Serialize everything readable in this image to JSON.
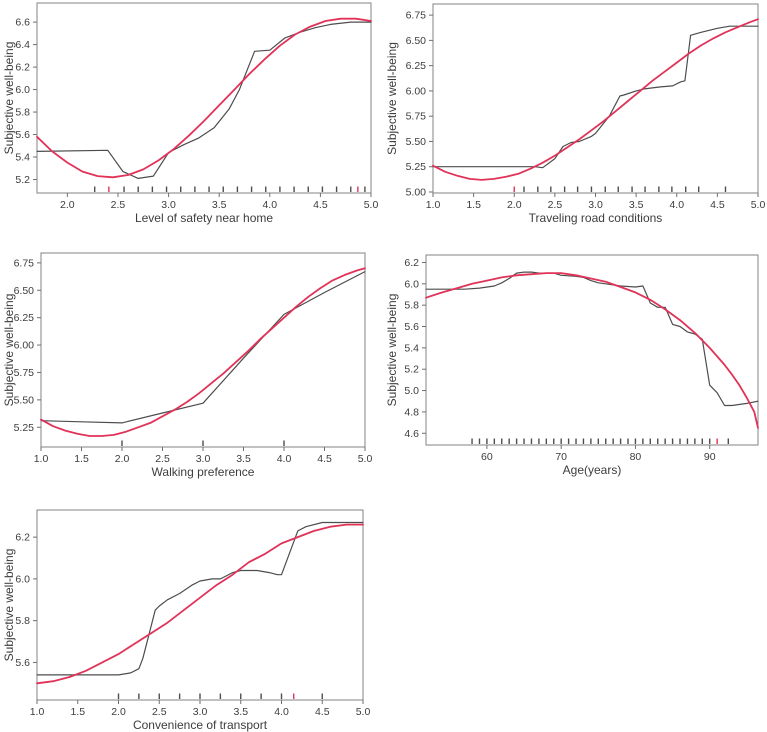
{
  "figure": {
    "background": "#ffffff"
  },
  "colors": {
    "observed": "#4d4d4d",
    "fitted": "#e13258",
    "frame": "#838383",
    "tick": "#6e6e6e",
    "text": "#3d3d3d"
  },
  "shared_ylabel": "Subjective well-being",
  "chart_data": [
    {
      "type": "line",
      "title": "",
      "xlabel": "Level of safety near home",
      "ylabel": "Subjective well-being",
      "xlim": [
        1.7,
        5.0
      ],
      "ylim": [
        5.08,
        6.77
      ],
      "grid": false,
      "legend": "none",
      "xticks": {
        "values": [
          2.0,
          2.5,
          3.0,
          3.5,
          4.0,
          4.5,
          5.0
        ],
        "labels": [
          "2.0",
          "2.5",
          "3.0",
          "3.5",
          "4.0",
          "4.5",
          "5.0"
        ]
      },
      "yticks": {
        "values": [
          5.2,
          5.4,
          5.6,
          5.8,
          6.0,
          6.2,
          6.4,
          6.6
        ],
        "labels": [
          "5.2",
          "5.4",
          "5.6",
          "5.8",
          "6.0",
          "6.2",
          "6.4",
          "6.6"
        ]
      },
      "series": [
        {
          "name": "observed",
          "color_key": "observed",
          "width": 1.2,
          "x": [
            1.7,
            2.4,
            2.55,
            2.7,
            2.85,
            3.0,
            3.15,
            3.3,
            3.45,
            3.6,
            3.7,
            3.85,
            4.0,
            4.15,
            4.3,
            4.45,
            4.6,
            4.8,
            5.0
          ],
          "y": [
            5.45,
            5.46,
            5.27,
            5.21,
            5.23,
            5.44,
            5.51,
            5.57,
            5.66,
            5.83,
            6.0,
            6.34,
            6.35,
            6.46,
            6.51,
            6.55,
            6.58,
            6.6,
            6.6
          ]
        },
        {
          "name": "fitted",
          "color_key": "fitted",
          "width": 1.8,
          "x": [
            1.7,
            1.85,
            2.0,
            2.15,
            2.3,
            2.45,
            2.6,
            2.75,
            2.9,
            3.05,
            3.2,
            3.35,
            3.5,
            3.65,
            3.8,
            3.95,
            4.1,
            4.25,
            4.4,
            4.55,
            4.7,
            4.85,
            5.0
          ],
          "y": [
            5.58,
            5.45,
            5.35,
            5.27,
            5.23,
            5.22,
            5.24,
            5.29,
            5.37,
            5.47,
            5.59,
            5.72,
            5.86,
            6.0,
            6.14,
            6.27,
            6.39,
            6.49,
            6.56,
            6.61,
            6.63,
            6.63,
            6.61
          ]
        }
      ],
      "rug": {
        "x": [
          2.27,
          2.56,
          2.7,
          2.84,
          2.98,
          3.12,
          3.26,
          3.4,
          3.54,
          3.68,
          3.82,
          3.96,
          4.1,
          4.24,
          4.38,
          4.52,
          4.66,
          4.8,
          4.94
        ],
        "red_x": [
          2.41,
          4.87
        ]
      }
    },
    {
      "type": "line",
      "title": "",
      "xlabel": "Traveling road conditions",
      "ylabel": "Subjective well-being",
      "xlim": [
        1.0,
        5.0
      ],
      "ylim": [
        4.99,
        6.86
      ],
      "grid": false,
      "legend": "none",
      "xticks": {
        "values": [
          1.0,
          1.5,
          2.0,
          2.5,
          3.0,
          3.5,
          4.0,
          4.5,
          5.0
        ],
        "labels": [
          "1.0",
          "1.5",
          "2.0",
          "2.5",
          "3.0",
          "3.5",
          "4.0",
          "4.5",
          "5.0"
        ]
      },
      "yticks": {
        "values": [
          5.0,
          5.25,
          5.5,
          5.75,
          6.0,
          6.25,
          6.5,
          6.75
        ],
        "labels": [
          "5.00",
          "5.25",
          "5.50",
          "5.75",
          "6.00",
          "6.25",
          "6.50",
          "6.75"
        ]
      },
      "series": [
        {
          "name": "observed",
          "color_key": "observed",
          "width": 1.2,
          "x": [
            1.0,
            2.25,
            2.35,
            2.5,
            2.6,
            2.7,
            2.8,
            2.95,
            3.0,
            3.1,
            3.17,
            3.3,
            3.35,
            3.5,
            3.6,
            3.8,
            3.95,
            4.05,
            4.1,
            4.17,
            4.3,
            4.5,
            4.65,
            5.0
          ],
          "y": [
            5.25,
            5.25,
            5.24,
            5.33,
            5.45,
            5.49,
            5.5,
            5.55,
            5.58,
            5.68,
            5.75,
            5.95,
            5.96,
            6.0,
            6.02,
            6.04,
            6.05,
            6.09,
            6.1,
            6.55,
            6.58,
            6.62,
            6.64,
            6.64
          ]
        },
        {
          "name": "fitted",
          "color_key": "fitted",
          "width": 1.8,
          "x": [
            1.0,
            1.15,
            1.3,
            1.45,
            1.6,
            1.75,
            1.9,
            2.05,
            2.2,
            2.35,
            2.5,
            2.65,
            2.8,
            2.95,
            3.1,
            3.25,
            3.4,
            3.55,
            3.7,
            3.85,
            4.0,
            4.15,
            4.3,
            4.45,
            4.6,
            4.75,
            4.9,
            5.0
          ],
          "y": [
            5.26,
            5.2,
            5.16,
            5.13,
            5.12,
            5.13,
            5.15,
            5.18,
            5.23,
            5.29,
            5.36,
            5.44,
            5.52,
            5.61,
            5.7,
            5.8,
            5.9,
            6.0,
            6.1,
            6.19,
            6.28,
            6.37,
            6.45,
            6.52,
            6.58,
            6.63,
            6.68,
            6.71
          ]
        }
      ],
      "rug": {
        "x": [
          2.12,
          2.29,
          2.45,
          2.62,
          2.78,
          2.95,
          3.12,
          3.28,
          3.45,
          3.61,
          3.78,
          3.94,
          4.11,
          4.27,
          4.6
        ],
        "red_x": [
          2.0
        ]
      }
    },
    {
      "type": "line",
      "title": "",
      "xlabel": "Walking preference",
      "ylabel": "Subjective well-being",
      "xlim": [
        1.0,
        5.0
      ],
      "ylim": [
        5.07,
        6.84
      ],
      "grid": false,
      "legend": "none",
      "xticks": {
        "values": [
          1.0,
          1.5,
          2.0,
          2.5,
          3.0,
          3.5,
          4.0,
          4.5,
          5.0
        ],
        "labels": [
          "1.0",
          "1.5",
          "2.0",
          "2.5",
          "3.0",
          "3.5",
          "4.0",
          "4.5",
          "5.0"
        ]
      },
      "yticks": {
        "values": [
          5.25,
          5.5,
          5.75,
          6.0,
          6.25,
          6.5,
          6.75
        ],
        "labels": [
          "5.25",
          "5.50",
          "5.75",
          "6.00",
          "6.25",
          "6.50",
          "6.75"
        ]
      },
      "series": [
        {
          "name": "observed",
          "color_key": "observed",
          "width": 1.2,
          "x": [
            1.0,
            1.5,
            2.0,
            2.5,
            3.0,
            3.5,
            4.0,
            4.5,
            5.0
          ],
          "y": [
            5.31,
            5.3,
            5.29,
            5.38,
            5.47,
            5.88,
            6.28,
            6.48,
            6.67
          ]
        },
        {
          "name": "fitted",
          "color_key": "fitted",
          "width": 1.8,
          "x": [
            1.0,
            1.15,
            1.3,
            1.45,
            1.6,
            1.75,
            1.9,
            2.05,
            2.2,
            2.35,
            2.5,
            2.65,
            2.8,
            2.95,
            3.1,
            3.25,
            3.4,
            3.55,
            3.7,
            3.85,
            4.0,
            4.15,
            4.3,
            4.45,
            4.6,
            4.75,
            4.9,
            5.0
          ],
          "y": [
            5.32,
            5.26,
            5.22,
            5.19,
            5.17,
            5.17,
            5.18,
            5.21,
            5.25,
            5.29,
            5.35,
            5.41,
            5.48,
            5.56,
            5.65,
            5.74,
            5.84,
            5.94,
            6.05,
            6.15,
            6.25,
            6.35,
            6.44,
            6.52,
            6.59,
            6.64,
            6.68,
            6.7
          ]
        }
      ],
      "rug": {
        "x": [
          2.0,
          3.0,
          4.0
        ],
        "red_x": []
      }
    },
    {
      "type": "line",
      "title": "",
      "xlabel": "Age(years)",
      "ylabel": "Subjective well-being",
      "xlim": [
        51.8,
        96.5
      ],
      "ylim": [
        4.49,
        6.27
      ],
      "grid": false,
      "legend": "none",
      "xticks": {
        "values": [
          60,
          70,
          80,
          90
        ],
        "labels": [
          "60",
          "70",
          "80",
          "90"
        ]
      },
      "yticks": {
        "values": [
          4.6,
          4.8,
          5.0,
          5.2,
          5.4,
          5.6,
          5.8,
          6.0,
          6.2
        ],
        "labels": [
          "4.6",
          "4.8",
          "5.0",
          "5.2",
          "5.4",
          "5.6",
          "5.8",
          "6.0",
          "6.2"
        ]
      },
      "series": [
        {
          "name": "observed",
          "color_key": "observed",
          "width": 1.2,
          "x": [
            51.8,
            57,
            59,
            61,
            62,
            63,
            64,
            65,
            66,
            67,
            69,
            70,
            72,
            73,
            74,
            75,
            76,
            77,
            78,
            80,
            81,
            82,
            83,
            84,
            85,
            86,
            87,
            88,
            89,
            90,
            91,
            92,
            93,
            95,
            96.5
          ],
          "y": [
            5.95,
            5.95,
            5.96,
            5.98,
            6.01,
            6.05,
            6.1,
            6.11,
            6.11,
            6.1,
            6.1,
            6.08,
            6.07,
            6.06,
            6.03,
            6.01,
            6.0,
            5.99,
            5.98,
            5.97,
            5.98,
            5.82,
            5.78,
            5.78,
            5.62,
            5.6,
            5.55,
            5.53,
            5.48,
            5.05,
            4.98,
            4.86,
            4.86,
            4.88,
            4.9
          ]
        },
        {
          "name": "fitted",
          "color_key": "fitted",
          "width": 1.8,
          "x": [
            51.8,
            54,
            56,
            58,
            60,
            62,
            64,
            66,
            68,
            70,
            72,
            74,
            76,
            78,
            80,
            82,
            84,
            86,
            88,
            90,
            92,
            93,
            94,
            95,
            96,
            96.5
          ],
          "y": [
            5.87,
            5.92,
            5.96,
            6.0,
            6.03,
            6.06,
            6.08,
            6.09,
            6.1,
            6.1,
            6.08,
            6.05,
            6.02,
            5.97,
            5.92,
            5.85,
            5.76,
            5.66,
            5.54,
            5.4,
            5.24,
            5.15,
            5.05,
            4.93,
            4.8,
            4.65
          ]
        }
      ],
      "rug": {
        "x": [
          58,
          59,
          60,
          61,
          62,
          63,
          64,
          65,
          66,
          67,
          68,
          69,
          70,
          71,
          72,
          73,
          74,
          75,
          76,
          77,
          78,
          79,
          80,
          81,
          82,
          83,
          84,
          85,
          86,
          87,
          88,
          89,
          90,
          92.5
        ],
        "red_x": [
          91
        ]
      }
    },
    {
      "type": "line",
      "title": "",
      "xlabel": "Convenience of transport",
      "ylabel": "Subjective well-being",
      "xlim": [
        1.0,
        5.0
      ],
      "ylim": [
        5.42,
        6.33
      ],
      "grid": false,
      "legend": "none",
      "xticks": {
        "values": [
          1.0,
          1.5,
          2.0,
          2.5,
          3.0,
          3.5,
          4.0,
          4.5,
          5.0
        ],
        "labels": [
          "1.0",
          "1.5",
          "2.0",
          "2.5",
          "3.0",
          "3.5",
          "4.0",
          "4.5",
          "5.0"
        ]
      },
      "yticks": {
        "values": [
          5.6,
          5.8,
          6.0,
          6.2
        ],
        "labels": [
          "5.6",
          "5.8",
          "6.0",
          "6.2"
        ]
      },
      "series": [
        {
          "name": "observed",
          "color_key": "observed",
          "width": 1.2,
          "x": [
            1.0,
            2.0,
            2.15,
            2.25,
            2.3,
            2.45,
            2.5,
            2.6,
            2.75,
            2.9,
            3.0,
            3.15,
            3.25,
            3.4,
            3.5,
            3.7,
            3.85,
            3.95,
            4.0,
            4.2,
            4.3,
            4.5,
            5.0
          ],
          "y": [
            5.54,
            5.54,
            5.55,
            5.57,
            5.62,
            5.85,
            5.87,
            5.9,
            5.93,
            5.97,
            5.99,
            6.0,
            6.0,
            6.03,
            6.04,
            6.04,
            6.03,
            6.02,
            6.02,
            6.23,
            6.25,
            6.27,
            6.27
          ]
        },
        {
          "name": "fitted",
          "color_key": "fitted",
          "width": 1.8,
          "x": [
            1.0,
            1.2,
            1.4,
            1.6,
            1.8,
            2.0,
            2.2,
            2.4,
            2.6,
            2.8,
            3.0,
            3.2,
            3.4,
            3.6,
            3.8,
            4.0,
            4.2,
            4.4,
            4.6,
            4.8,
            5.0
          ],
          "y": [
            5.5,
            5.51,
            5.53,
            5.56,
            5.6,
            5.64,
            5.69,
            5.74,
            5.79,
            5.85,
            5.91,
            5.97,
            6.02,
            6.08,
            6.12,
            6.17,
            6.2,
            6.23,
            6.25,
            6.26,
            6.26
          ]
        }
      ],
      "rug": {
        "x": [
          2.0,
          2.25,
          2.5,
          2.75,
          3.0,
          3.25,
          3.5,
          3.75,
          4.0,
          4.5
        ],
        "red_x": [
          4.15
        ]
      }
    }
  ]
}
